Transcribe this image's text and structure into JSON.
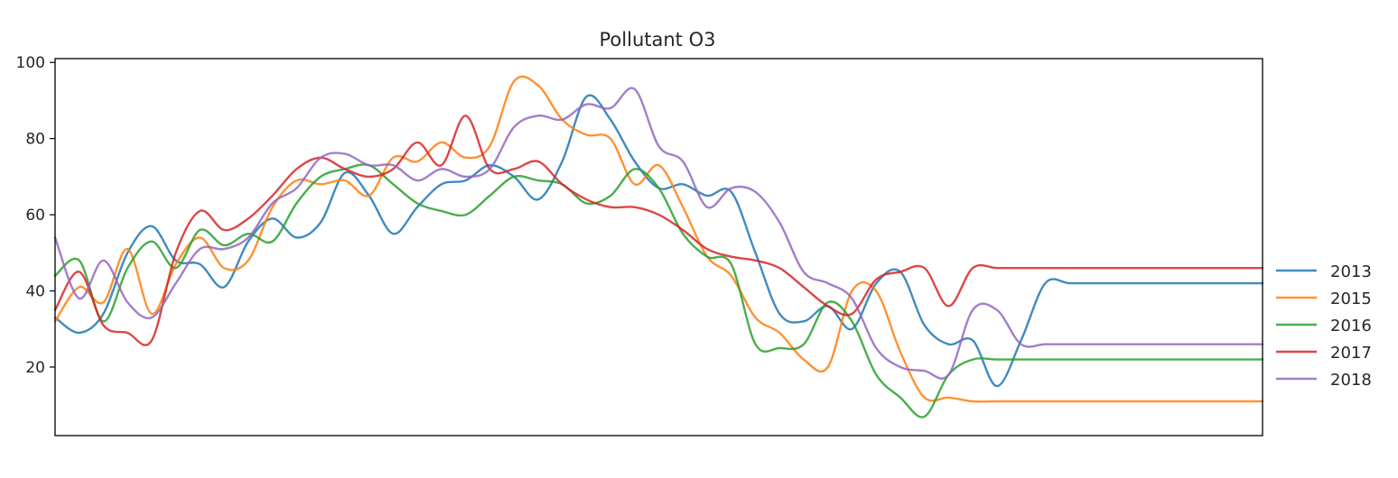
{
  "chart_data": {
    "type": "line",
    "title": "Pollutant O3",
    "xlabel": "",
    "ylabel": "",
    "xlim": [
      0,
      100
    ],
    "ylim": [
      2,
      101
    ],
    "yticks": [
      20,
      40,
      60,
      80,
      100
    ],
    "grid": false,
    "legend_position": "right",
    "x": [
      0,
      2,
      4,
      6,
      8,
      10,
      12,
      14,
      16,
      18,
      20,
      22,
      24,
      26,
      28,
      30,
      32,
      34,
      36,
      38,
      40,
      42,
      44,
      46,
      48,
      50,
      52,
      54,
      56,
      58,
      60,
      62,
      64,
      66,
      68,
      70,
      72,
      74,
      76,
      78,
      80,
      82,
      84,
      86,
      88,
      90,
      92,
      94,
      96,
      98,
      100
    ],
    "series": [
      {
        "name": "2013",
        "color": "#1f77b4",
        "values": [
          33,
          29,
          34,
          50,
          57,
          48,
          47,
          41,
          53,
          59,
          54,
          58,
          71,
          65,
          55,
          62,
          68,
          69,
          73,
          70,
          64,
          74,
          91,
          85,
          74,
          67,
          68,
          65,
          66,
          50,
          34,
          32,
          36,
          30,
          42,
          45,
          31,
          26,
          27,
          15,
          27,
          42,
          42,
          42,
          42,
          42,
          42,
          42,
          42,
          42,
          42
        ]
      },
      {
        "name": "2015",
        "color": "#ff7f0e",
        "values": [
          32,
          41,
          37,
          51,
          34,
          47,
          54,
          46,
          48,
          62,
          69,
          68,
          69,
          65,
          75,
          74,
          79,
          75,
          78,
          95,
          94,
          85,
          81,
          80,
          68,
          73,
          62,
          49,
          44,
          33,
          29,
          22,
          20,
          40,
          40,
          24,
          12,
          12,
          11,
          11,
          11,
          11,
          11,
          11,
          11,
          11,
          11,
          11,
          11,
          11,
          11
        ]
      },
      {
        "name": "2016",
        "color": "#2ca02c",
        "values": [
          44,
          48,
          32,
          46,
          53,
          46,
          56,
          52,
          55,
          53,
          63,
          70,
          72,
          73,
          68,
          63,
          61,
          60,
          65,
          70,
          69,
          68,
          63,
          65,
          72,
          67,
          55,
          49,
          47,
          26,
          25,
          26,
          37,
          32,
          18,
          12,
          7,
          18,
          22,
          22,
          22,
          22,
          22,
          22,
          22,
          22,
          22,
          22,
          22,
          22,
          22
        ]
      },
      {
        "name": "2017",
        "color": "#d62728",
        "values": [
          35,
          45,
          31,
          29,
          27,
          50,
          61,
          56,
          59,
          65,
          72,
          75,
          72,
          70,
          72,
          79,
          73,
          86,
          72,
          72,
          74,
          68,
          64,
          62,
          62,
          60,
          56,
          51,
          49,
          48,
          46,
          41,
          36,
          34,
          43,
          45,
          46,
          36,
          46,
          46,
          46,
          46,
          46,
          46,
          46,
          46,
          46,
          46,
          46,
          46,
          46
        ]
      },
      {
        "name": "2018",
        "color": "#9467bd",
        "values": [
          54,
          38,
          48,
          37,
          33,
          42,
          51,
          51,
          54,
          63,
          67,
          75,
          76,
          73,
          73,
          69,
          72,
          70,
          72,
          83,
          86,
          85,
          89,
          88,
          93,
          78,
          74,
          62,
          67,
          66,
          58,
          45,
          42,
          38,
          25,
          20,
          19,
          18,
          35,
          35,
          26,
          26,
          26,
          26,
          26,
          26,
          26,
          26,
          26,
          26,
          26
        ]
      }
    ]
  }
}
